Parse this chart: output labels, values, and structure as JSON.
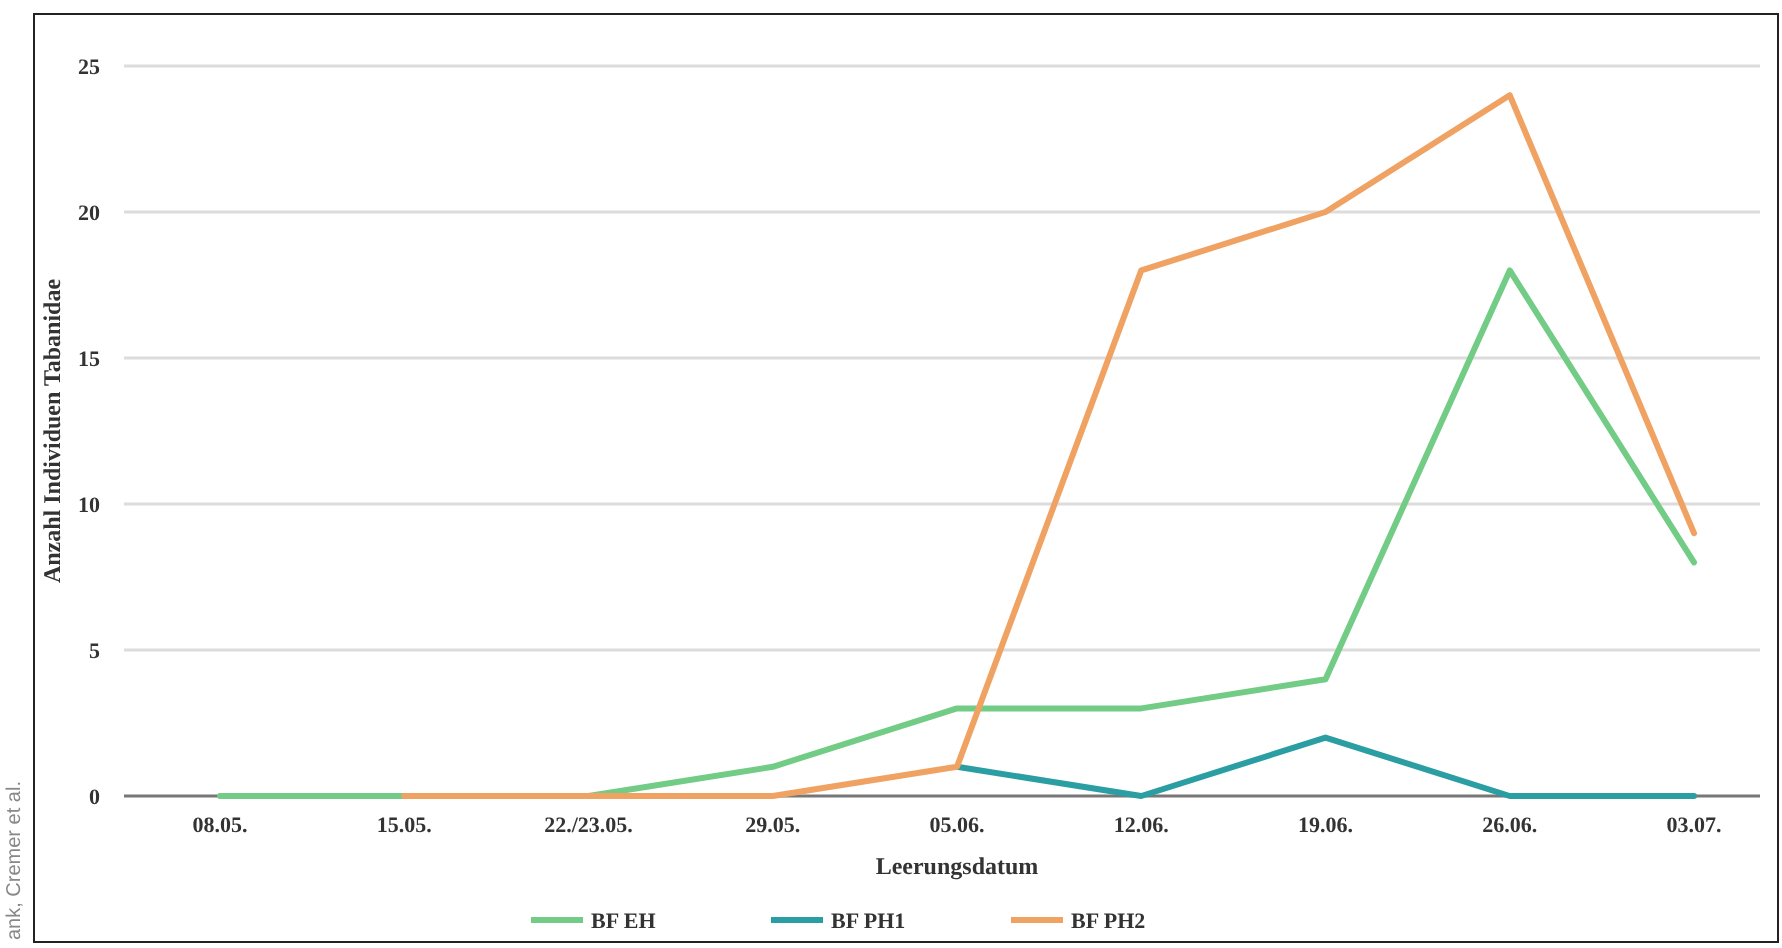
{
  "chart_data": {
    "type": "line",
    "xlabel": "Leerungsdatum",
    "ylabel": "Anzahl Individuen Tabanidae",
    "categories": [
      "08.05.",
      "15.05.",
      "22./23.05.",
      "29.05.",
      "05.06.",
      "12.06.",
      "19.06.",
      "26.06.",
      "03.07."
    ],
    "series": [
      {
        "name": "BF EH",
        "color": "#72cc85",
        "values": [
          0,
          0,
          0,
          1,
          3,
          3,
          4,
          18,
          8
        ]
      },
      {
        "name": "BF PH1",
        "color": "#2b9ea3",
        "values": [
          null,
          null,
          null,
          null,
          1,
          0,
          2,
          0,
          0
        ]
      },
      {
        "name": "BF PH2",
        "color": "#f0a263",
        "values": [
          null,
          0,
          0,
          0,
          1,
          18,
          20,
          24,
          9
        ]
      }
    ],
    "ylim": [
      0,
      25
    ],
    "yticks": [
      0,
      5,
      10,
      15,
      20,
      25
    ],
    "grid": "y",
    "legend": "bottom",
    "marker": "none",
    "line_style": "solid",
    "annotations": [
      "ank, Cremer et al."
    ]
  }
}
